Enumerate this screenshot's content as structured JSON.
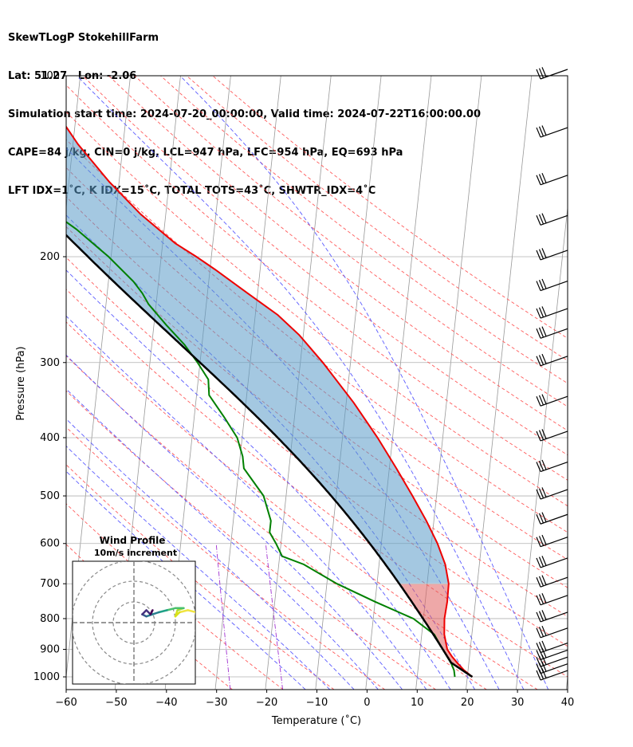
{
  "header": {
    "title": "SkewTLogP StokehillFarm",
    "location": "Lat: 51.27   Lon: -2.06",
    "times": "Simulation start time: 2024-07-20_00:00:00, Valid time: 2024-07-22T16:00:00.00",
    "cape_line": "CAPE=84 j/kg, CIN=0 j/kg, LCL=947 hPa, LFC=954 hPa, EQ=693 hPa",
    "index_line": "LFT IDX=1˚C, K IDX=15˚C, TOTAL TOTS=43˚C, SHWTR_IDX=4˚C"
  },
  "chart_data": {
    "type": "skew-t log-p",
    "xlabel": "Temperature (˚C)",
    "ylabel": "Pressure (hPa)",
    "xlim": [
      -60,
      40
    ],
    "ylim": [
      1050,
      100
    ],
    "x_ticks": [
      "−60",
      "−50",
      "−40",
      "−30",
      "−20",
      "−10",
      "0",
      "10",
      "20",
      "30",
      "40"
    ],
    "y_ticks": [
      "100",
      "200",
      "300",
      "400",
      "500",
      "600",
      "700",
      "800",
      "900",
      "1000"
    ],
    "grid": true,
    "colors": {
      "temperature": "#ee0000",
      "dewpoint": "#008000",
      "parcel": "#000000",
      "cape_fill": "#5a9ac8",
      "cin_fill": "#e06060",
      "dry_adiabats": "#ff5a5a",
      "moist_adiabats": "#5a5aff",
      "mixing_ratio": "#a030d0",
      "isotherms": "#999999"
    },
    "temperature_profile": [
      {
        "p": 1000,
        "t": 21.0
      },
      {
        "p": 975,
        "t": 19.2
      },
      {
        "p": 950,
        "t": 17.8
      },
      {
        "p": 925,
        "t": 16.5
      },
      {
        "p": 900,
        "t": 15.4
      },
      {
        "p": 850,
        "t": 14.5
      },
      {
        "p": 800,
        "t": 14.2
      },
      {
        "p": 750,
        "t": 14.4
      },
      {
        "p": 700,
        "t": 14.3
      },
      {
        "p": 650,
        "t": 13.2
      },
      {
        "p": 600,
        "t": 11.2
      },
      {
        "p": 550,
        "t": 8.5
      },
      {
        "p": 500,
        "t": 5.2
      },
      {
        "p": 450,
        "t": 1.4
      },
      {
        "p": 400,
        "t": -3.0
      },
      {
        "p": 350,
        "t": -8.5
      },
      {
        "p": 300,
        "t": -15.5
      },
      {
        "p": 270,
        "t": -20.8
      },
      {
        "p": 250,
        "t": -25.5
      },
      {
        "p": 230,
        "t": -32.0
      },
      {
        "p": 210,
        "t": -39.0
      },
      {
        "p": 200,
        "t": -43.0
      },
      {
        "p": 190,
        "t": -47.5
      },
      {
        "p": 170,
        "t": -55.0
      },
      {
        "p": 150,
        "t": -62.0
      },
      {
        "p": 130,
        "t": -69.0
      },
      {
        "p": 115,
        "t": -74.0
      },
      {
        "p": 100,
        "t": -80.0
      }
    ],
    "dewpoint_profile": [
      {
        "p": 1000,
        "t": 17.5
      },
      {
        "p": 975,
        "t": 17.2
      },
      {
        "p": 950,
        "t": 16.5
      },
      {
        "p": 900,
        "t": 14.5
      },
      {
        "p": 850,
        "t": 12.5
      },
      {
        "p": 800,
        "t": 8.0
      },
      {
        "p": 750,
        "t": 0.0
      },
      {
        "p": 700,
        "t": -8.0
      },
      {
        "p": 650,
        "t": -15.0
      },
      {
        "p": 630,
        "t": -19.5
      },
      {
        "p": 600,
        "t": -21.0
      },
      {
        "p": 575,
        "t": -22.5
      },
      {
        "p": 550,
        "t": -22.5
      },
      {
        "p": 500,
        "t": -24.5
      },
      {
        "p": 450,
        "t": -29.0
      },
      {
        "p": 430,
        "t": -29.5
      },
      {
        "p": 400,
        "t": -31.0
      },
      {
        "p": 370,
        "t": -34.0
      },
      {
        "p": 340,
        "t": -37.5
      },
      {
        "p": 320,
        "t": -38.0
      },
      {
        "p": 300,
        "t": -40.5
      },
      {
        "p": 280,
        "t": -43.5
      },
      {
        "p": 260,
        "t": -47.5
      },
      {
        "p": 240,
        "t": -51.5
      },
      {
        "p": 230,
        "t": -53.0
      },
      {
        "p": 220,
        "t": -55.0
      },
      {
        "p": 200,
        "t": -60.5
      },
      {
        "p": 180,
        "t": -67.5
      },
      {
        "p": 170,
        "t": -72.0
      },
      {
        "p": 160,
        "t": -78.0
      },
      {
        "p": 150,
        "t": -79.5
      },
      {
        "p": 140,
        "t": -78.5
      },
      {
        "p": 120,
        "t": -80.0
      },
      {
        "p": 100,
        "t": -83.0
      }
    ],
    "wind_barb_levels": [
      1000,
      975,
      950,
      925,
      900,
      850,
      800,
      750,
      700,
      650,
      600,
      550,
      500,
      450,
      400,
      350,
      300,
      270,
      250,
      225,
      200,
      175,
      150,
      125,
      100
    ],
    "hodograph": {
      "title": "Wind Profile",
      "subtitle": "10m/s increment",
      "ring_interval_ms": 10,
      "points": [
        {
          "u": 30,
          "v": 5
        },
        {
          "u": 26,
          "v": 6
        },
        {
          "u": 22,
          "v": 5
        },
        {
          "u": 20,
          "v": 3
        },
        {
          "u": 21,
          "v": 6
        },
        {
          "u": 24,
          "v": 7
        },
        {
          "u": 20,
          "v": 7
        },
        {
          "u": 16,
          "v": 6
        },
        {
          "u": 12,
          "v": 5
        },
        {
          "u": 9,
          "v": 4
        },
        {
          "u": 6,
          "v": 3
        },
        {
          "u": 4,
          "v": 4
        },
        {
          "u": 6,
          "v": 6
        },
        {
          "u": 8,
          "v": 4
        },
        {
          "u": 9,
          "v": 6
        }
      ]
    }
  }
}
